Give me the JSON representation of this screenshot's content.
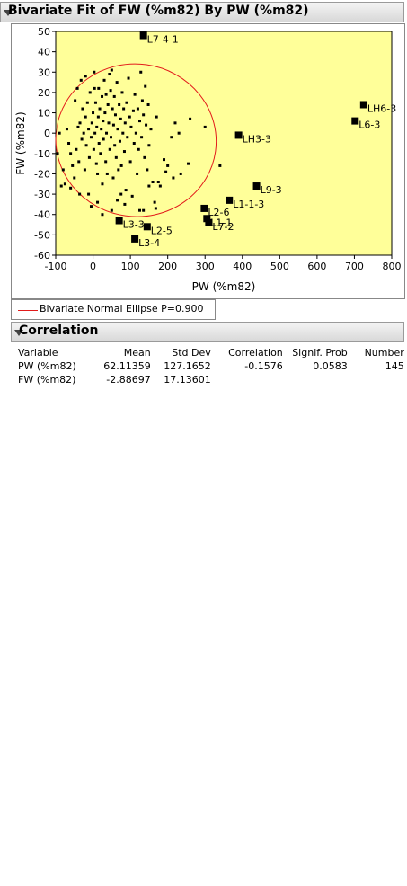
{
  "outline_titles": {
    "bivariate": "Bivariate Fit of FW (%m82) By PW (%m82)",
    "correlation": "Correlation"
  },
  "legend": {
    "label": "Bivariate Normal Ellipse P=0.900",
    "color": "#e21b1b"
  },
  "chart_data": {
    "type": "scatter",
    "xlabel": "PW (%m82)",
    "ylabel": "FW (%m82)",
    "xlim": [
      -100,
      800
    ],
    "ylim": [
      -60,
      50
    ],
    "xticks": [
      -100,
      0,
      100,
      200,
      300,
      400,
      500,
      600,
      700,
      800
    ],
    "yticks": [
      -60,
      -50,
      -40,
      -30,
      -20,
      -10,
      0,
      10,
      20,
      30,
      40,
      50
    ],
    "grid": false,
    "point_color": "#000000",
    "ellipse": {
      "label": "Bivariate Normal Ellipse P=0.900",
      "color": "#e21b1b",
      "center": [
        62.11,
        -2.89
      ],
      "x_extent": [
        -100,
        330
      ],
      "y_extent": [
        -41,
        34
      ],
      "tilt": "slight negative"
    },
    "labeled_points": [
      {
        "label": "L7-4-1",
        "x": 135,
        "y": 48
      },
      {
        "label": "LH6-3",
        "x": 725,
        "y": 14
      },
      {
        "label": "L6-3",
        "x": 702,
        "y": 6
      },
      {
        "label": "LH3-3",
        "x": 390,
        "y": -1
      },
      {
        "label": "L9-3",
        "x": 438,
        "y": -26
      },
      {
        "label": "L1-1-3",
        "x": 365,
        "y": -33
      },
      {
        "label": "L2-6",
        "x": 298,
        "y": -37
      },
      {
        "label": "L1-1",
        "x": 305,
        "y": -42
      },
      {
        "label": "L7-2",
        "x": 310,
        "y": -44
      },
      {
        "label": "L3-3",
        "x": 70,
        "y": -43
      },
      {
        "label": "L2-5",
        "x": 145,
        "y": -46
      },
      {
        "label": "L3-4",
        "x": 112,
        "y": -52
      }
    ],
    "points": [
      [
        -70,
        2
      ],
      [
        -65,
        -5
      ],
      [
        -60,
        -10
      ],
      [
        -55,
        -16
      ],
      [
        -60,
        -27
      ],
      [
        -75,
        -25
      ],
      [
        -50,
        -22
      ],
      [
        -45,
        -8
      ],
      [
        -40,
        3
      ],
      [
        -38,
        -14
      ],
      [
        -35,
        5
      ],
      [
        -30,
        -3
      ],
      [
        -28,
        12
      ],
      [
        -25,
        0
      ],
      [
        -22,
        -18
      ],
      [
        -20,
        8
      ],
      [
        -18,
        -6
      ],
      [
        -15,
        15
      ],
      [
        -12,
        2
      ],
      [
        -10,
        -12
      ],
      [
        -8,
        20
      ],
      [
        -5,
        -2
      ],
      [
        -3,
        5
      ],
      [
        0,
        10
      ],
      [
        2,
        -8
      ],
      [
        4,
        22
      ],
      [
        5,
        0
      ],
      [
        7,
        15
      ],
      [
        9,
        -15
      ],
      [
        10,
        3
      ],
      [
        12,
        -20
      ],
      [
        14,
        8
      ],
      [
        15,
        22
      ],
      [
        16,
        -5
      ],
      [
        18,
        12
      ],
      [
        20,
        -10
      ],
      [
        22,
        2
      ],
      [
        24,
        18
      ],
      [
        25,
        -25
      ],
      [
        27,
        6
      ],
      [
        28,
        -3
      ],
      [
        30,
        26
      ],
      [
        32,
        10
      ],
      [
        34,
        -14
      ],
      [
        35,
        19
      ],
      [
        36,
        0
      ],
      [
        38,
        -20
      ],
      [
        40,
        14
      ],
      [
        42,
        5
      ],
      [
        44,
        29
      ],
      [
        45,
        -8
      ],
      [
        47,
        21
      ],
      [
        48,
        -2
      ],
      [
        50,
        31
      ],
      [
        52,
        12
      ],
      [
        54,
        -22
      ],
      [
        55,
        4
      ],
      [
        57,
        18
      ],
      [
        58,
        -6
      ],
      [
        60,
        9
      ],
      [
        62,
        -12
      ],
      [
        64,
        25
      ],
      [
        66,
        2
      ],
      [
        68,
        -18
      ],
      [
        70,
        14
      ],
      [
        72,
        -4
      ],
      [
        74,
        7
      ],
      [
        76,
        -16
      ],
      [
        78,
        20
      ],
      [
        80,
        0
      ],
      [
        82,
        12
      ],
      [
        84,
        -9
      ],
      [
        86,
        5
      ],
      [
        88,
        -28
      ],
      [
        90,
        15
      ],
      [
        92,
        -2
      ],
      [
        95,
        27
      ],
      [
        98,
        8
      ],
      [
        100,
        -14
      ],
      [
        102,
        3
      ],
      [
        105,
        -31
      ],
      [
        108,
        11
      ],
      [
        110,
        -5
      ],
      [
        112,
        19
      ],
      [
        115,
        0
      ],
      [
        118,
        -20
      ],
      [
        120,
        12
      ],
      [
        122,
        -8
      ],
      [
        125,
        6
      ],
      [
        128,
        30
      ],
      [
        130,
        -2
      ],
      [
        132,
        16
      ],
      [
        135,
        9
      ],
      [
        138,
        -12
      ],
      [
        140,
        23
      ],
      [
        142,
        4
      ],
      [
        145,
        -18
      ],
      [
        148,
        14
      ],
      [
        150,
        -6
      ],
      [
        155,
        2
      ],
      [
        160,
        -24
      ],
      [
        165,
        -34
      ],
      [
        170,
        8
      ],
      [
        175,
        -24
      ],
      [
        190,
        -13
      ],
      [
        200,
        -16
      ],
      [
        210,
        -2
      ],
      [
        220,
        5
      ],
      [
        235,
        -20
      ],
      [
        255,
        -15
      ],
      [
        260,
        7
      ],
      [
        300,
        3
      ],
      [
        340,
        -16
      ],
      [
        -85,
        -26
      ],
      [
        -90,
        0
      ],
      [
        -95,
        -10
      ],
      [
        -80,
        -18
      ],
      [
        -5,
        -36
      ],
      [
        25,
        -40
      ],
      [
        50,
        -38
      ],
      [
        65,
        -33
      ],
      [
        75,
        -30
      ],
      [
        85,
        -35
      ],
      [
        125,
        -38
      ],
      [
        135,
        -38
      ],
      [
        150,
        -26
      ],
      [
        168,
        -37
      ],
      [
        180,
        -26
      ],
      [
        195,
        -19
      ],
      [
        215,
        -22
      ],
      [
        230,
        0
      ],
      [
        -48,
        16
      ],
      [
        -42,
        22
      ],
      [
        -36,
        -30
      ],
      [
        -32,
        26
      ],
      [
        -20,
        28
      ],
      [
        -12,
        -30
      ],
      [
        3,
        30
      ],
      [
        12,
        -34
      ]
    ]
  },
  "correlation_table": {
    "headers": [
      "Variable",
      "Mean",
      "Std Dev",
      "Correlation",
      "Signif. Prob",
      "Number"
    ],
    "rows": [
      {
        "variable": "PW (%m82)",
        "mean": "62.11359",
        "std_dev": "127.1652",
        "correlation": "-0.1576",
        "signif_prob": "0.0583",
        "number": "145"
      },
      {
        "variable": "FW (%m82)",
        "mean": "-2.88697",
        "std_dev": "17.13601",
        "correlation": "",
        "signif_prob": "",
        "number": ""
      }
    ]
  }
}
